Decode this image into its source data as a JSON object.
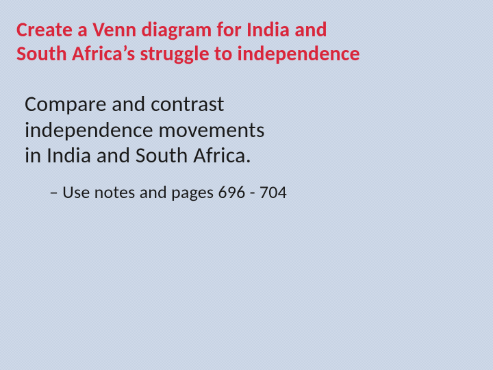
{
  "slide": {
    "title_line1": "Create a Venn diagram for India and",
    "title_line2": "South Africa’s struggle to independence",
    "body_line1": "Compare and contrast",
    "body_line2": "independence movements",
    "body_line3": "in India and South Africa.",
    "sub_dash": "–",
    "sub_text": "Use notes and pages 696 - 704"
  },
  "style": {
    "title_color": "#d9263b",
    "body_color": "#1a1a1a",
    "sub_color": "#1a1a1a",
    "background_base": "#c7d3e4",
    "title_fontsize": 30,
    "body_fontsize": 32,
    "sub_fontsize": 26
  }
}
